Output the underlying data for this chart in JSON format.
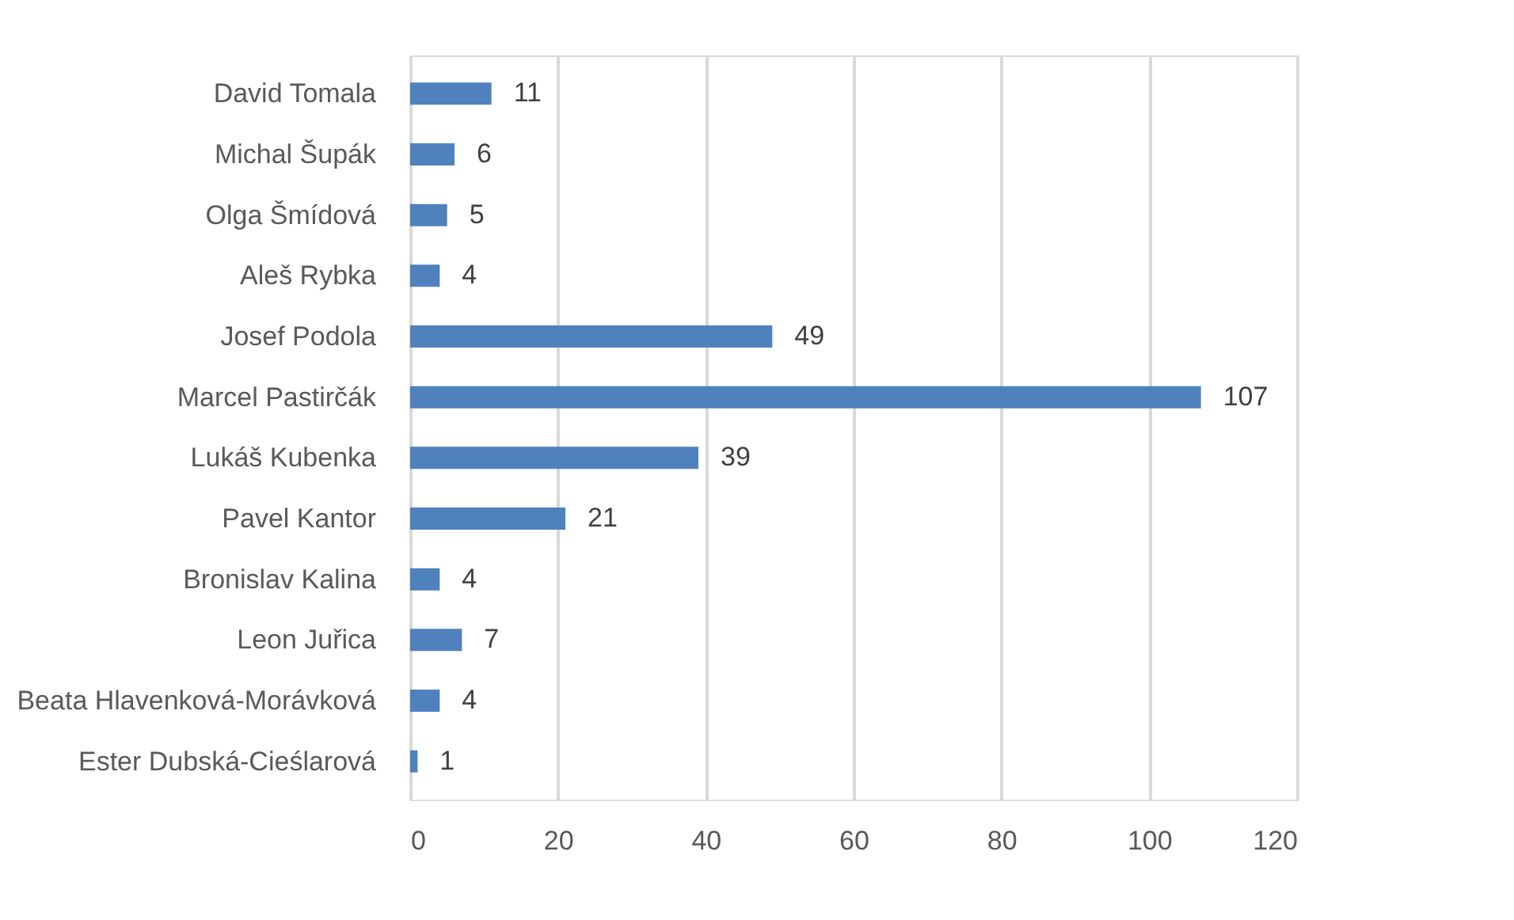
{
  "chart_data": {
    "type": "bar",
    "orientation": "horizontal",
    "categories": [
      "David Tomala",
      "Michal Šupák",
      "Olga Šmídová",
      "Aleš Rybka",
      "Josef Podola",
      "Marcel Pastirčák",
      "Lukáš Kubenka",
      "Pavel Kantor",
      "Bronislav Kalina",
      "Leon Juřica",
      "Beata Hlavenková-Morávková",
      "Ester Dubská-Cieślarová"
    ],
    "values": [
      11,
      6,
      5,
      4,
      49,
      107,
      39,
      21,
      4,
      7,
      4,
      1
    ],
    "color": "#4f81bd",
    "xlim": [
      0,
      120
    ],
    "xticks": [
      0,
      20,
      40,
      60,
      80,
      100,
      120
    ],
    "grid": "x",
    "data_labels": true
  }
}
